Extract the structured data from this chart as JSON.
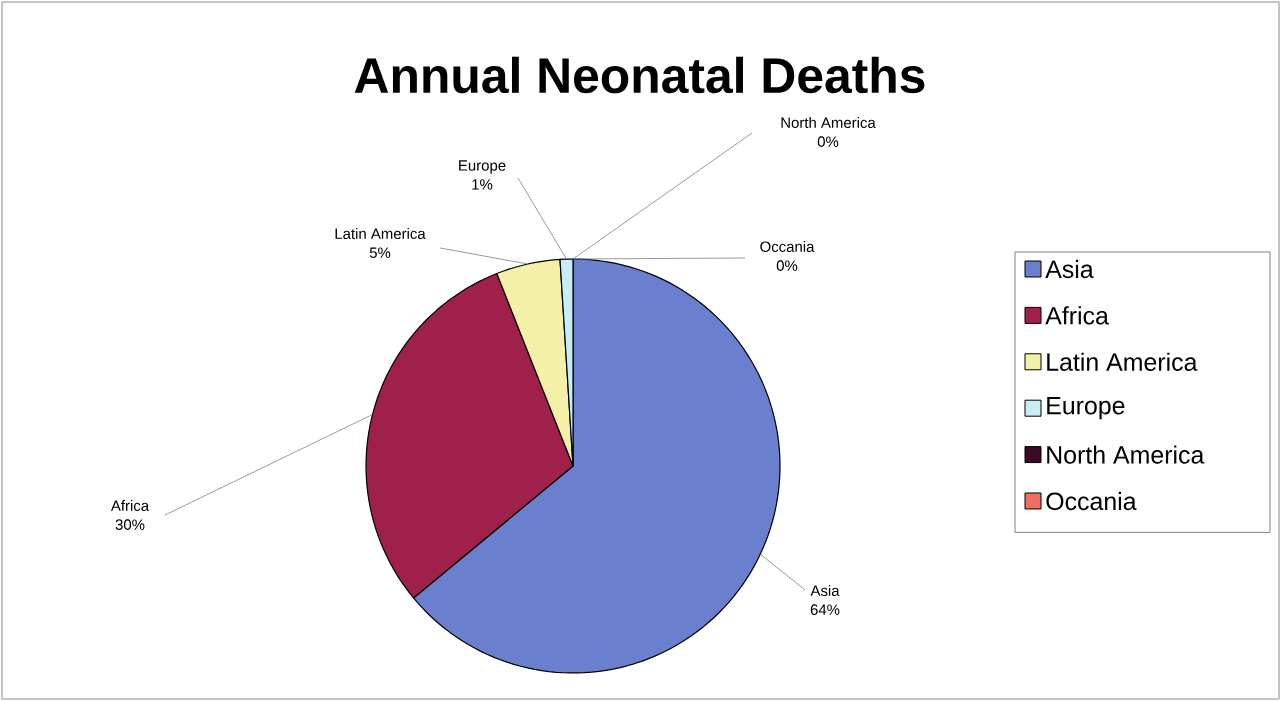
{
  "chart_data": {
    "type": "pie",
    "title": "Annual Neonatal Deaths",
    "categories": [
      "Asia",
      "Africa",
      "Latin America",
      "Europe",
      "North America",
      "Occania"
    ],
    "values": [
      64,
      30,
      5,
      1,
      0,
      0
    ],
    "value_labels": [
      "64%",
      "30%",
      "5%",
      "1%",
      "0%",
      "0%"
    ],
    "colors": [
      "#6b7fcf",
      "#a0204c",
      "#f5f0a8",
      "#c8eef5",
      "#3a0a28",
      "#f07060"
    ],
    "legend": "right"
  }
}
